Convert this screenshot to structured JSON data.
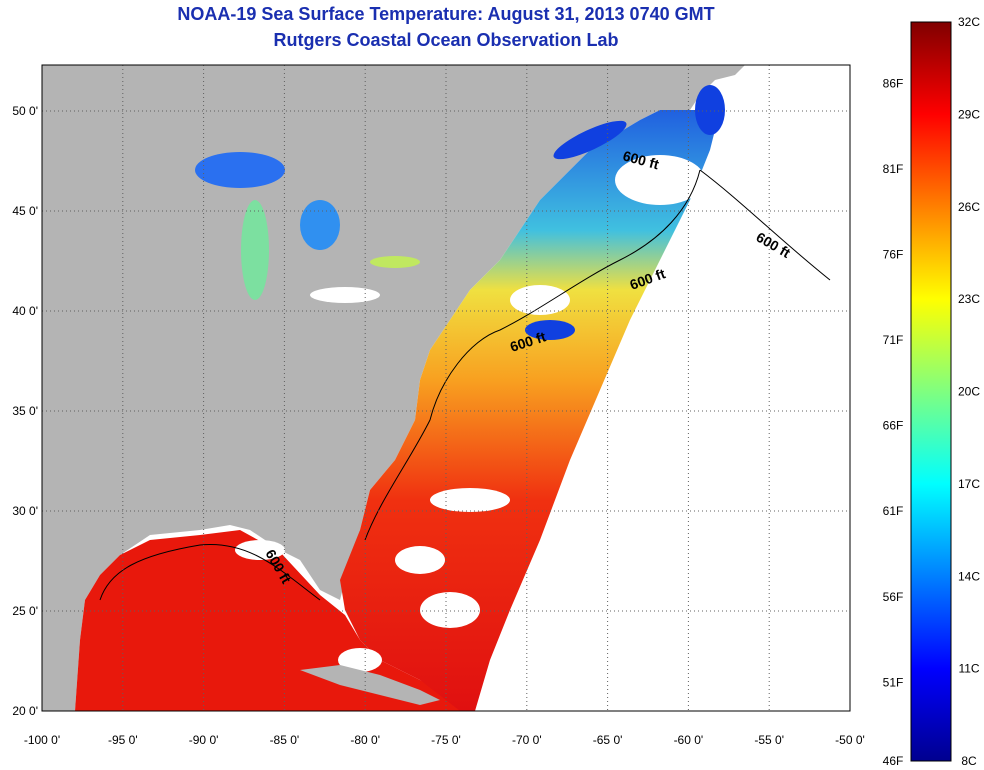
{
  "title": {
    "line1": "NOAA-19 Sea Surface Temperature:  August 31, 2013 0740 GMT",
    "line2": "Rutgers Coastal Ocean Observation Lab"
  },
  "map": {
    "lon_range": [
      -100,
      -50
    ],
    "lat_range": [
      20,
      52.3
    ],
    "x_ticks": [
      "-100 0'",
      "-95 0'",
      "-90 0'",
      "-85 0'",
      "-80 0'",
      "-75 0'",
      "-70 0'",
      "-65 0'",
      "-60 0'",
      "-55 0'",
      "-50 0'"
    ],
    "y_ticks": [
      "20 0'",
      "25 0'",
      "30 0'",
      "35 0'",
      "40 0'",
      "45 0'",
      "50 0'"
    ],
    "contour_labels": [
      "600 ft",
      "600 ft",
      "600 ft",
      "600 ft",
      "600 ft"
    ],
    "colors": {
      "land": "#b4b4b4",
      "grid": "#606060",
      "cloud": "#ffffff"
    }
  },
  "colorbar": {
    "celsius_ticks": [
      "32C",
      "29C",
      "26C",
      "23C",
      "20C",
      "17C",
      "14C",
      "11C",
      "8C"
    ],
    "fahrenheit_ticks": [
      "86F",
      "81F",
      "76F",
      "71F",
      "66F",
      "61F",
      "56F",
      "51F",
      "46F"
    ],
    "range_c": [
      8,
      32
    ],
    "colormap": "jet"
  }
}
